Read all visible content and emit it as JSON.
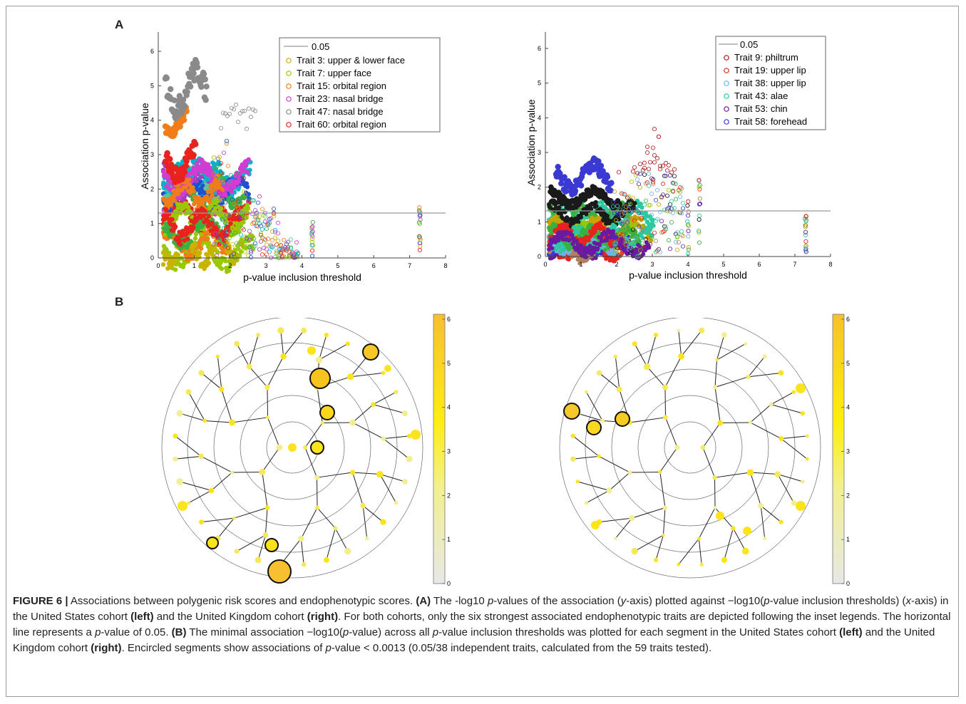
{
  "panels": {
    "a": "A",
    "b": "B"
  },
  "charts": {
    "left": {
      "ylabel": "Association p-value",
      "xlabel": "p-value inclusion threshold",
      "xticks": [
        "0",
        "1",
        "2",
        "3",
        "4",
        "5",
        "6",
        "7",
        "8"
      ],
      "yticks": [
        "0",
        "1",
        "2",
        "3",
        "4",
        "5",
        "6"
      ],
      "line_label": "0.05",
      "legend": [
        {
          "name": "Trait 3: upper & lower face",
          "color": "#c8b400"
        },
        {
          "name": "Trait 7: upper face",
          "color": "#9ac800"
        },
        {
          "name": "Trait 15: orbital region",
          "color": "#f07d1a"
        },
        {
          "name": "Trait 23: nasal bridge",
          "color": "#d23cd2"
        },
        {
          "name": "Trait 47: nasal bridge",
          "color": "#8a8a8a"
        },
        {
          "name": "Trait 60: orbital region",
          "color": "#e8221e"
        }
      ]
    },
    "right": {
      "ylabel": "Association p-value",
      "xlabel": "p-value inclusion threshold",
      "xticks": [
        "0",
        "1",
        "2",
        "3",
        "4",
        "5",
        "6",
        "7",
        "8"
      ],
      "yticks": [
        "0",
        "1",
        "2",
        "3",
        "4",
        "5",
        "6"
      ],
      "line_label": "0.05",
      "legend": [
        {
          "name": "Trait 9: philtrum",
          "color": "#b01818"
        },
        {
          "name": "Trait 19: upper lip",
          "color": "#e8221e"
        },
        {
          "name": "Trait 38: upper lip",
          "color": "#6ab4e8"
        },
        {
          "name": "Trait 43: alae",
          "color": "#2ec8a0"
        },
        {
          "name": "Trait 53: chin",
          "color": "#6a1aa0"
        },
        {
          "name": "Trait 58: forehead",
          "color": "#3a3ad2"
        }
      ]
    }
  },
  "colorbar": {
    "ticks": [
      "0",
      "1",
      "2",
      "3",
      "4",
      "5",
      "6"
    ]
  },
  "caption": {
    "label": "FIGURE 6 |",
    "t1": " Associations between polygenic risk scores and endophenotypic scores. ",
    "a": "(A)",
    "t2": " The -log10 ",
    "p1": "p",
    "t3": "-values of the association (",
    "y": "y",
    "t4": "-axis) plotted against −log10(",
    "p2": "p",
    "t5": "-value inclusion thresholds) (",
    "x": "x",
    "t6": "-axis) in the United States cohort ",
    "left1": "(left)",
    "t7": " and the United Kingdom cohort ",
    "right1": "(right)",
    "t8": ". For both cohorts, only the six strongest associated endophenotypic traits are depicted following the inset legends. The horizontal line represents a ",
    "p3": "p",
    "t9": "-value of 0.05. ",
    "b": "(B)",
    "t10": " The minimal association −log10(",
    "p4": "p",
    "t11": "-value) across all ",
    "p5": "p",
    "t12": "-value inclusion thresholds was plotted for each segment in the United States cohort ",
    "left2": "(left)",
    "t13": " and the United Kingdom cohort ",
    "right2": "(right)",
    "t14": ". Encircled segments show associations of ",
    "p6": "p",
    "t15": "-value < 0.0013 (0.05/38 independent traits, calculated from the 59 traits tested)."
  }
}
